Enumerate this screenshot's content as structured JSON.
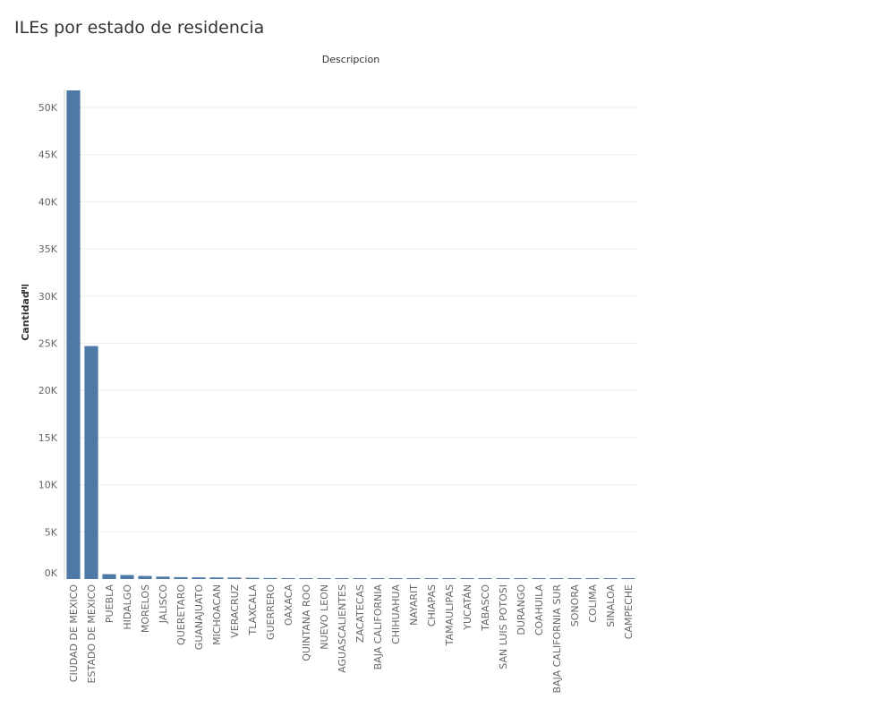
{
  "title": "ILEs por estado de residencia",
  "chart_data": {
    "type": "bar",
    "column_header": "Descripcion",
    "ylabel": "Cantidad",
    "ylim": [
      0,
      54000
    ],
    "grid": true,
    "yticks": [
      {
        "value": 0,
        "label": "0K"
      },
      {
        "value": 5000,
        "label": "5K"
      },
      {
        "value": 10000,
        "label": "10K"
      },
      {
        "value": 15000,
        "label": "15K"
      },
      {
        "value": 20000,
        "label": "20K"
      },
      {
        "value": 25000,
        "label": "25K"
      },
      {
        "value": 30000,
        "label": "30K"
      },
      {
        "value": 35000,
        "label": "35K"
      },
      {
        "value": 40000,
        "label": "40K"
      },
      {
        "value": 45000,
        "label": "45K"
      },
      {
        "value": 50000,
        "label": "50K"
      }
    ],
    "categories": [
      "CIUDAD DE MEXICO",
      "ESTADO DE MEXICO",
      "PUEBLA",
      "HIDALGO",
      "MORELOS",
      "JALISCO",
      "QUERETARO",
      "GUANAJUATO",
      "MICHOACAN",
      "VERACRUZ",
      "TLAXCALA",
      "GUERRERO",
      "OAXACA",
      "QUINTANA ROO",
      "NUEVO LEON",
      "AGUASCALIENTES",
      "ZACATECAS",
      "BAJA CALIFORNIA",
      "CHIHUAHUA",
      "NAYARIT",
      "CHIAPAS",
      "TAMAULIPAS",
      "YUCATÁN",
      "TABASCO",
      "SAN LUIS POTOSI",
      "DURANGO",
      "COAHUILA",
      "BAJA CALIFORNIA SUR",
      "SONORA",
      "COLIMA",
      "SINALOA",
      "CAMPECHE"
    ],
    "values": [
      51800,
      24700,
      520,
      430,
      330,
      260,
      200,
      180,
      170,
      160,
      130,
      110,
      100,
      90,
      80,
      60,
      40,
      30,
      25,
      20,
      18,
      15,
      12,
      10,
      9,
      8,
      7,
      6,
      5,
      4,
      3,
      2
    ],
    "bar_color": "#4e79a7"
  }
}
